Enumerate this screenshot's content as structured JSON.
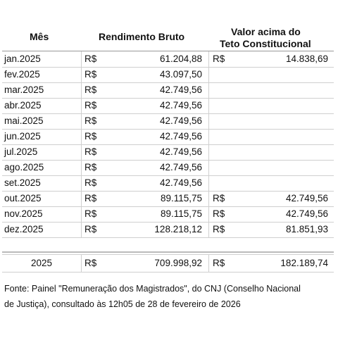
{
  "table": {
    "header": {
      "month": "Mês",
      "gross": "Rendimento Bruto",
      "above": [
        "Valor acima do",
        "Teto Constitucional"
      ]
    },
    "currency": "R$",
    "rows": [
      {
        "month": "jan.2025",
        "gross": "61.204,88",
        "above": "14.838,69"
      },
      {
        "month": "fev.2025",
        "gross": "43.097,50",
        "above": null
      },
      {
        "month": "mar.2025",
        "gross": "42.749,56",
        "above": null
      },
      {
        "month": "abr.2025",
        "gross": "42.749,56",
        "above": null
      },
      {
        "month": "mai.2025",
        "gross": "42.749,56",
        "above": null
      },
      {
        "month": "jun.2025",
        "gross": "42.749,56",
        "above": null
      },
      {
        "month": "jul.2025",
        "gross": "42.749,56",
        "above": null
      },
      {
        "month": "ago.2025",
        "gross": "42.749,56",
        "above": null
      },
      {
        "month": "set.2025",
        "gross": "42.749,56",
        "above": null
      },
      {
        "month": "out.2025",
        "gross": "89.115,75",
        "above": "42.749,56"
      },
      {
        "month": "nov.2025",
        "gross": "89.115,75",
        "above": "42.749,56"
      },
      {
        "month": "dez.2025",
        "gross": "128.218,12",
        "above": "81.851,93"
      }
    ],
    "total": {
      "month": "2025",
      "gross": "709.998,92",
      "above": "182.189,74"
    }
  },
  "footer": {
    "lines": [
      "Fonte: Painel \"Remuneração dos Magistrados\", do CNJ (Conselho Nacional",
      "de Justiça), consultado às 12h05 de 28 de fevereiro de 2026"
    ]
  }
}
